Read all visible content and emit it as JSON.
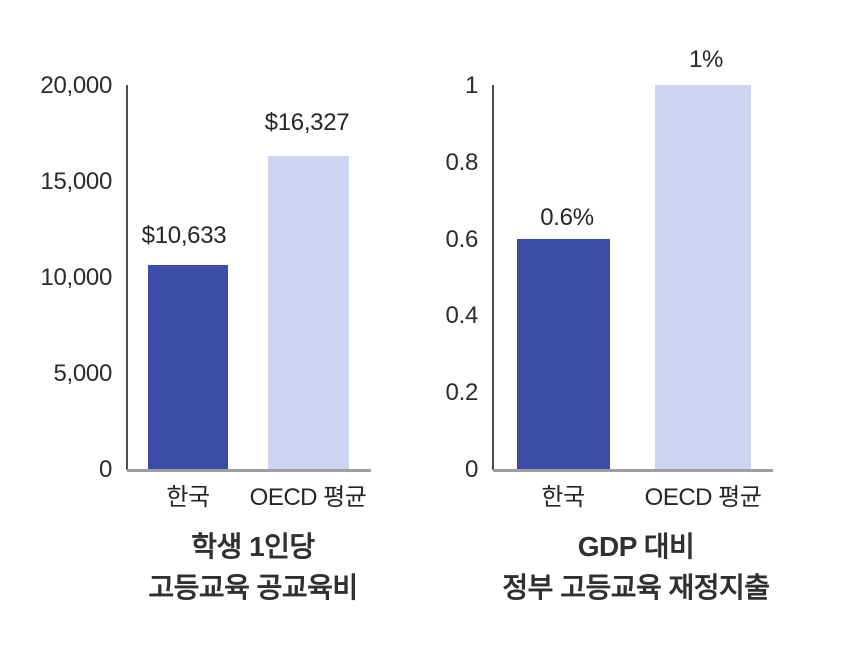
{
  "colors": {
    "korea_bar": "#3C4CA7",
    "oecd_bar": "#CED3F0",
    "y_axis_line": "#4D4D4D",
    "baseline": "#9E9E9E",
    "text": "#2B2B2B"
  },
  "chart_data": [
    {
      "type": "bar",
      "title": "학생 1인당 고등교육 공교육비",
      "title_lines": [
        "학생 1인당",
        "고등교육 공교육비"
      ],
      "categories": [
        "한국",
        "OECD 평균"
      ],
      "values": [
        10633,
        16327
      ],
      "value_labels": [
        "$10,633",
        "$16,327"
      ],
      "yticks": [
        "20,000",
        "15,000",
        "10,000",
        "5,000",
        "0"
      ],
      "ylim": [
        0,
        20000
      ],
      "grid": false,
      "legend": false
    },
    {
      "type": "bar",
      "title": "GDP 대비 정부 고등교육 재정지출",
      "title_lines": [
        "GDP 대비",
        "정부 고등교육 재정지출"
      ],
      "categories": [
        "한국",
        "OECD 평균"
      ],
      "values": [
        0.6,
        1
      ],
      "value_labels": [
        "0.6%",
        "1%"
      ],
      "yticks": [
        "1",
        "0.8",
        "0.6",
        "0.4",
        "0.2",
        "0"
      ],
      "ylim": [
        0,
        1
      ],
      "grid": false,
      "legend": false
    }
  ]
}
